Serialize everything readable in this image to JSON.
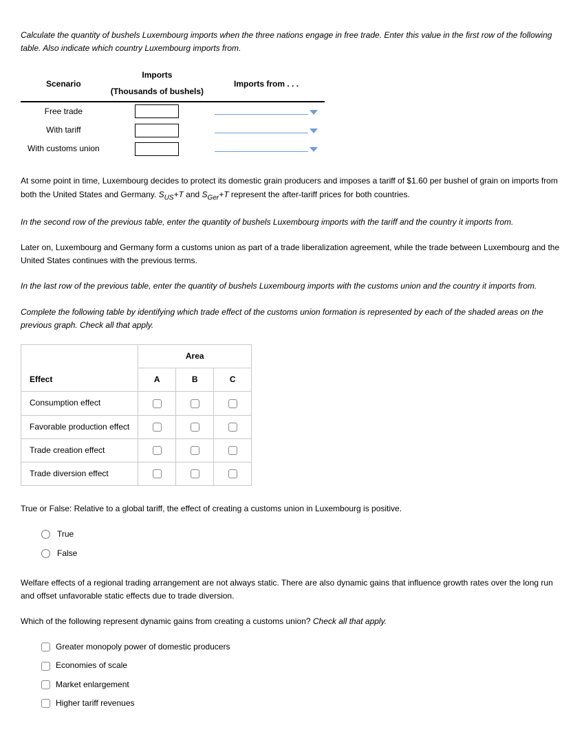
{
  "intro1": "Calculate the quantity of bushels Luxembourg imports when the three nations engage in free trade. Enter this value in the first row of the following table. Also indicate which country Luxembourg imports from.",
  "imports_table": {
    "headers": {
      "scenario": "Scenario",
      "imports_top": "Imports",
      "imports_bottom": "(Thousands of bushels)",
      "imports_from": "Imports from . . ."
    },
    "rows": {
      "0": "Free trade",
      "1": "With tariff",
      "2": "With customs union"
    }
  },
  "para_tariff_html": "At some point in time, Luxembourg decides to protect its domestic grain producers and imposes a tariff of $1.60 per bushel of grain on imports from both the United States and Germany. <span class=\"math-sub\">S<sub>US</sub>+T</span> and <span class=\"math-sub\">S<sub>Ger</sub>+T</span> represent the after-tariff prices for both countries.",
  "instr2": "In the second row of the previous table, enter the quantity of bushels Luxembourg imports with the tariff and the country it imports from.",
  "para_cu": "Later on, Luxembourg and Germany form a customs union as part of a trade liberalization agreement, while the trade between Luxembourg and the United States continues with the previous terms.",
  "instr3": "In the last row of the previous table, enter the quantity of bushels Luxembourg imports with the customs union and the country it imports from.",
  "instr4": "Complete the following table by identifying which trade effect of the customs union formation is represented by each of the shaded areas on the previous graph. Check all that apply.",
  "effects_table": {
    "header_effect": "Effect",
    "header_area": "Area",
    "cols": {
      "0": "A",
      "1": "B",
      "2": "C"
    },
    "rows": {
      "0": "Consumption effect",
      "1": "Favorable production effect",
      "2": "Trade creation effect",
      "3": "Trade diversion effect"
    }
  },
  "tf_prompt": "True or False: Relative to a global tariff, the effect of creating a customs union in Luxembourg is positive.",
  "tf": {
    "true": "True",
    "false": "False"
  },
  "para_welfare": "Welfare effects of a regional trading arrangement are not always static. There are also dynamic gains that influence growth rates over the long run and offset unfavorable static effects due to trade diversion.",
  "dyn_prompt_html": "Which of the following represent dynamic gains from creating a customs union? <span class=\"sitalic\">Check all that apply.</span>",
  "dyn_opts": {
    "0": "Greater monopoly power of domestic producers",
    "1": "Economies of scale",
    "2": "Market enlargement",
    "3": "Higher tariff revenues"
  },
  "colors": {
    "dropdown": "#6f9fd8",
    "table_border": "#c8c8c8"
  }
}
